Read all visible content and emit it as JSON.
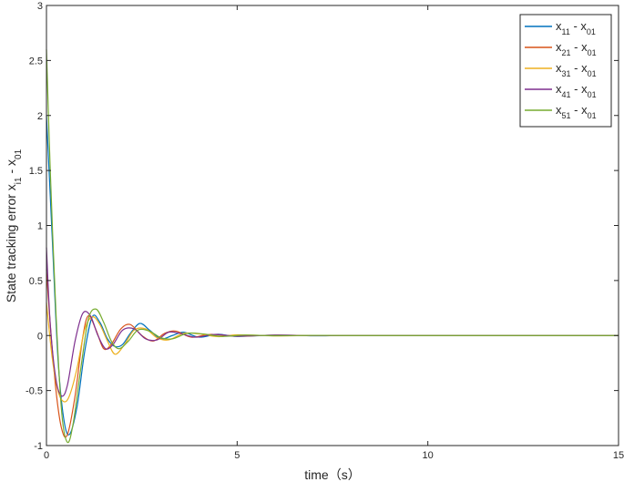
{
  "chart_data": {
    "type": "line",
    "title": "",
    "xlabel": "time（s）",
    "ylabel": {
      "main": "State tracking error x",
      "sub1": "i1",
      "mid": " - x",
      "sub2": "01"
    },
    "xlim": [
      0,
      15
    ],
    "ylim": [
      -1,
      3
    ],
    "xticks": [
      0,
      5,
      10,
      15
    ],
    "yticks": [
      -1,
      -0.5,
      0,
      0.5,
      1,
      1.5,
      2,
      2.5,
      3
    ],
    "grid": false,
    "legend_position": "top-right",
    "series": [
      {
        "label": {
          "a": "x",
          "asub": "11",
          "mid": " - x",
          "bsub": "01"
        },
        "color": "#0072BD",
        "x": [
          0,
          0.15,
          0.3,
          0.45,
          0.6,
          0.8,
          1.0,
          1.2,
          1.4,
          1.6,
          1.8,
          2.0,
          2.2,
          2.45,
          2.7,
          3.0,
          3.3,
          3.6,
          4.0,
          4.5,
          5.0,
          6.0,
          7.0,
          8.0,
          10.0,
          12.0,
          15.0
        ],
        "y": [
          2.0,
          0.9,
          -0.2,
          -0.75,
          -0.9,
          -0.65,
          -0.15,
          0.17,
          0.12,
          -0.03,
          -0.1,
          -0.08,
          0.02,
          0.11,
          0.05,
          -0.03,
          0.0,
          0.03,
          -0.015,
          0.012,
          -0.008,
          0.004,
          -0.002,
          0.001,
          0.0,
          0.0,
          0.0
        ]
      },
      {
        "label": {
          "a": "x",
          "asub": "21",
          "mid": " - x",
          "bsub": "01"
        },
        "color": "#D95319",
        "x": [
          0,
          0.1,
          0.25,
          0.4,
          0.55,
          0.75,
          0.95,
          1.1,
          1.3,
          1.5,
          1.7,
          1.95,
          2.2,
          2.5,
          2.8,
          3.1,
          3.4,
          3.8,
          4.3,
          5.0,
          6.0,
          7.0,
          8.0,
          10.0,
          15.0
        ],
        "y": [
          0.6,
          0.1,
          -0.5,
          -0.85,
          -0.9,
          -0.55,
          -0.02,
          0.18,
          0.05,
          -0.12,
          -0.08,
          0.06,
          0.1,
          0.0,
          -0.05,
          0.02,
          0.04,
          -0.015,
          0.01,
          -0.006,
          0.003,
          -0.001,
          0.0,
          0.0,
          0.0
        ]
      },
      {
        "label": {
          "a": "x",
          "asub": "31",
          "mid": " - x",
          "bsub": "01"
        },
        "color": "#EDB120",
        "x": [
          0,
          0.15,
          0.3,
          0.45,
          0.6,
          0.8,
          1.0,
          1.2,
          1.4,
          1.6,
          1.8,
          2.05,
          2.3,
          2.6,
          2.9,
          3.2,
          3.6,
          4.0,
          4.5,
          5.0,
          6.0,
          7.0,
          8.0,
          10.0,
          15.0
        ],
        "y": [
          0.3,
          -0.2,
          -0.5,
          -0.6,
          -0.55,
          -0.3,
          0.05,
          0.17,
          0.1,
          -0.05,
          -0.17,
          -0.08,
          0.05,
          0.06,
          -0.02,
          -0.04,
          0.02,
          0.015,
          -0.01,
          0.006,
          -0.003,
          0.001,
          0.0,
          0.0,
          0.0
        ]
      },
      {
        "label": {
          "a": "x",
          "asub": "41",
          "mid": " - x",
          "bsub": "01"
        },
        "color": "#7E2F8E",
        "x": [
          0,
          0.1,
          0.25,
          0.4,
          0.55,
          0.75,
          0.95,
          1.15,
          1.35,
          1.55,
          1.75,
          2.0,
          2.3,
          2.6,
          2.9,
          3.2,
          3.5,
          3.9,
          4.4,
          5.0,
          6.0,
          7.0,
          8.0,
          10.0,
          15.0
        ],
        "y": [
          0.8,
          0.1,
          -0.4,
          -0.55,
          -0.45,
          -0.05,
          0.2,
          0.18,
          0.0,
          -0.12,
          -0.08,
          0.05,
          0.06,
          -0.03,
          -0.04,
          0.03,
          0.02,
          -0.015,
          0.01,
          -0.005,
          0.002,
          -0.001,
          0.0,
          0.0,
          0.0
        ]
      },
      {
        "label": {
          "a": "x",
          "asub": "51",
          "mid": " - x",
          "bsub": "01"
        },
        "color": "#77AC30",
        "x": [
          0,
          0.1,
          0.25,
          0.4,
          0.55,
          0.7,
          0.9,
          1.1,
          1.3,
          1.5,
          1.7,
          1.9,
          2.15,
          2.4,
          2.7,
          3.0,
          3.3,
          3.7,
          4.1,
          4.6,
          5.2,
          6.0,
          7.0,
          8.0,
          10.0,
          15.0
        ],
        "y": [
          2.6,
          1.5,
          0.2,
          -0.7,
          -0.97,
          -0.8,
          -0.3,
          0.15,
          0.24,
          0.12,
          -0.05,
          -0.12,
          -0.05,
          0.05,
          0.04,
          -0.02,
          -0.03,
          0.02,
          0.015,
          -0.008,
          0.004,
          -0.002,
          0.001,
          0.0,
          0.0,
          0.0
        ]
      }
    ]
  }
}
